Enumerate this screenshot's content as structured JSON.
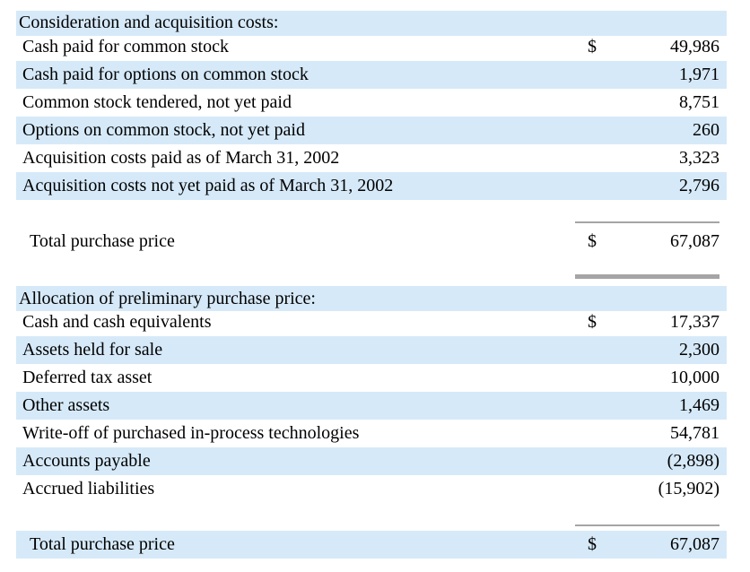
{
  "section1": {
    "header": "Consideration and acquisition costs:",
    "rows": [
      {
        "label": "Cash paid for common stock",
        "dollar": "$",
        "amount": "49,986"
      },
      {
        "label": "Cash paid for options on common stock",
        "dollar": "",
        "amount": "1,971"
      },
      {
        "label": "Common stock tendered, not yet paid",
        "dollar": "",
        "amount": "8,751"
      },
      {
        "label": "Options on common stock, not yet paid",
        "dollar": "",
        "amount": "260"
      },
      {
        "label": "Acquisition costs paid as of March 31, 2002",
        "dollar": "",
        "amount": "3,323"
      },
      {
        "label": "Acquisition costs not yet paid as of March 31, 2002",
        "dollar": "",
        "amount": "2,796"
      }
    ],
    "total": {
      "label": "Total purchase price",
      "dollar": "$",
      "amount": "67,087"
    }
  },
  "section2": {
    "header": "Allocation of preliminary purchase price:",
    "rows": [
      {
        "label": "Cash and cash equivalents",
        "dollar": "$",
        "amount": "17,337"
      },
      {
        "label": "Assets held for sale",
        "dollar": "",
        "amount": "2,300"
      },
      {
        "label": "Deferred tax asset",
        "dollar": "",
        "amount": "10,000"
      },
      {
        "label": "Other assets",
        "dollar": "",
        "amount": "1,469"
      },
      {
        "label": "Write-off of purchased in-process technologies",
        "dollar": "",
        "amount": "54,781"
      },
      {
        "label": "Accounts payable",
        "dollar": "",
        "amount": "(2,898)"
      },
      {
        "label": "Accrued liabilities",
        "dollar": "",
        "amount": "(15,902)"
      }
    ],
    "total": {
      "label": "Total purchase price",
      "dollar": "$",
      "amount": "67,087"
    }
  },
  "colors": {
    "row_shade": "#d6e9f8",
    "rule": "#a5a5a5"
  }
}
